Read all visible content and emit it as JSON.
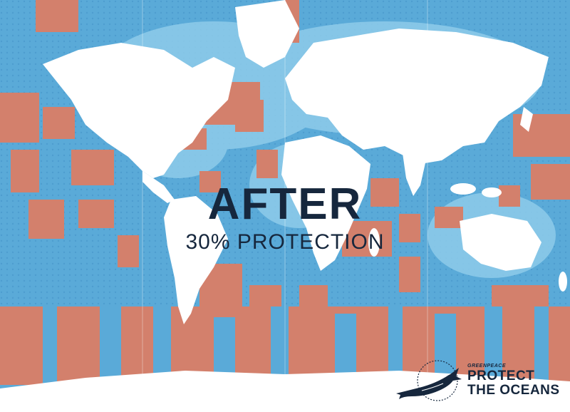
{
  "map": {
    "projection": "mercator",
    "legend_colors": {
      "protected": "#d3806c",
      "ocean": "#5fb0dc",
      "ocean_deep": "#3f8fc4",
      "land": "#ffffff"
    }
  },
  "headline": {
    "title": "AFTER",
    "subtitle": "30% PROTECTION"
  },
  "brand": {
    "org": "GREENPEACE",
    "line1": "PROTECT",
    "line2": "THE OCEANS",
    "icon": "whale-icon"
  }
}
